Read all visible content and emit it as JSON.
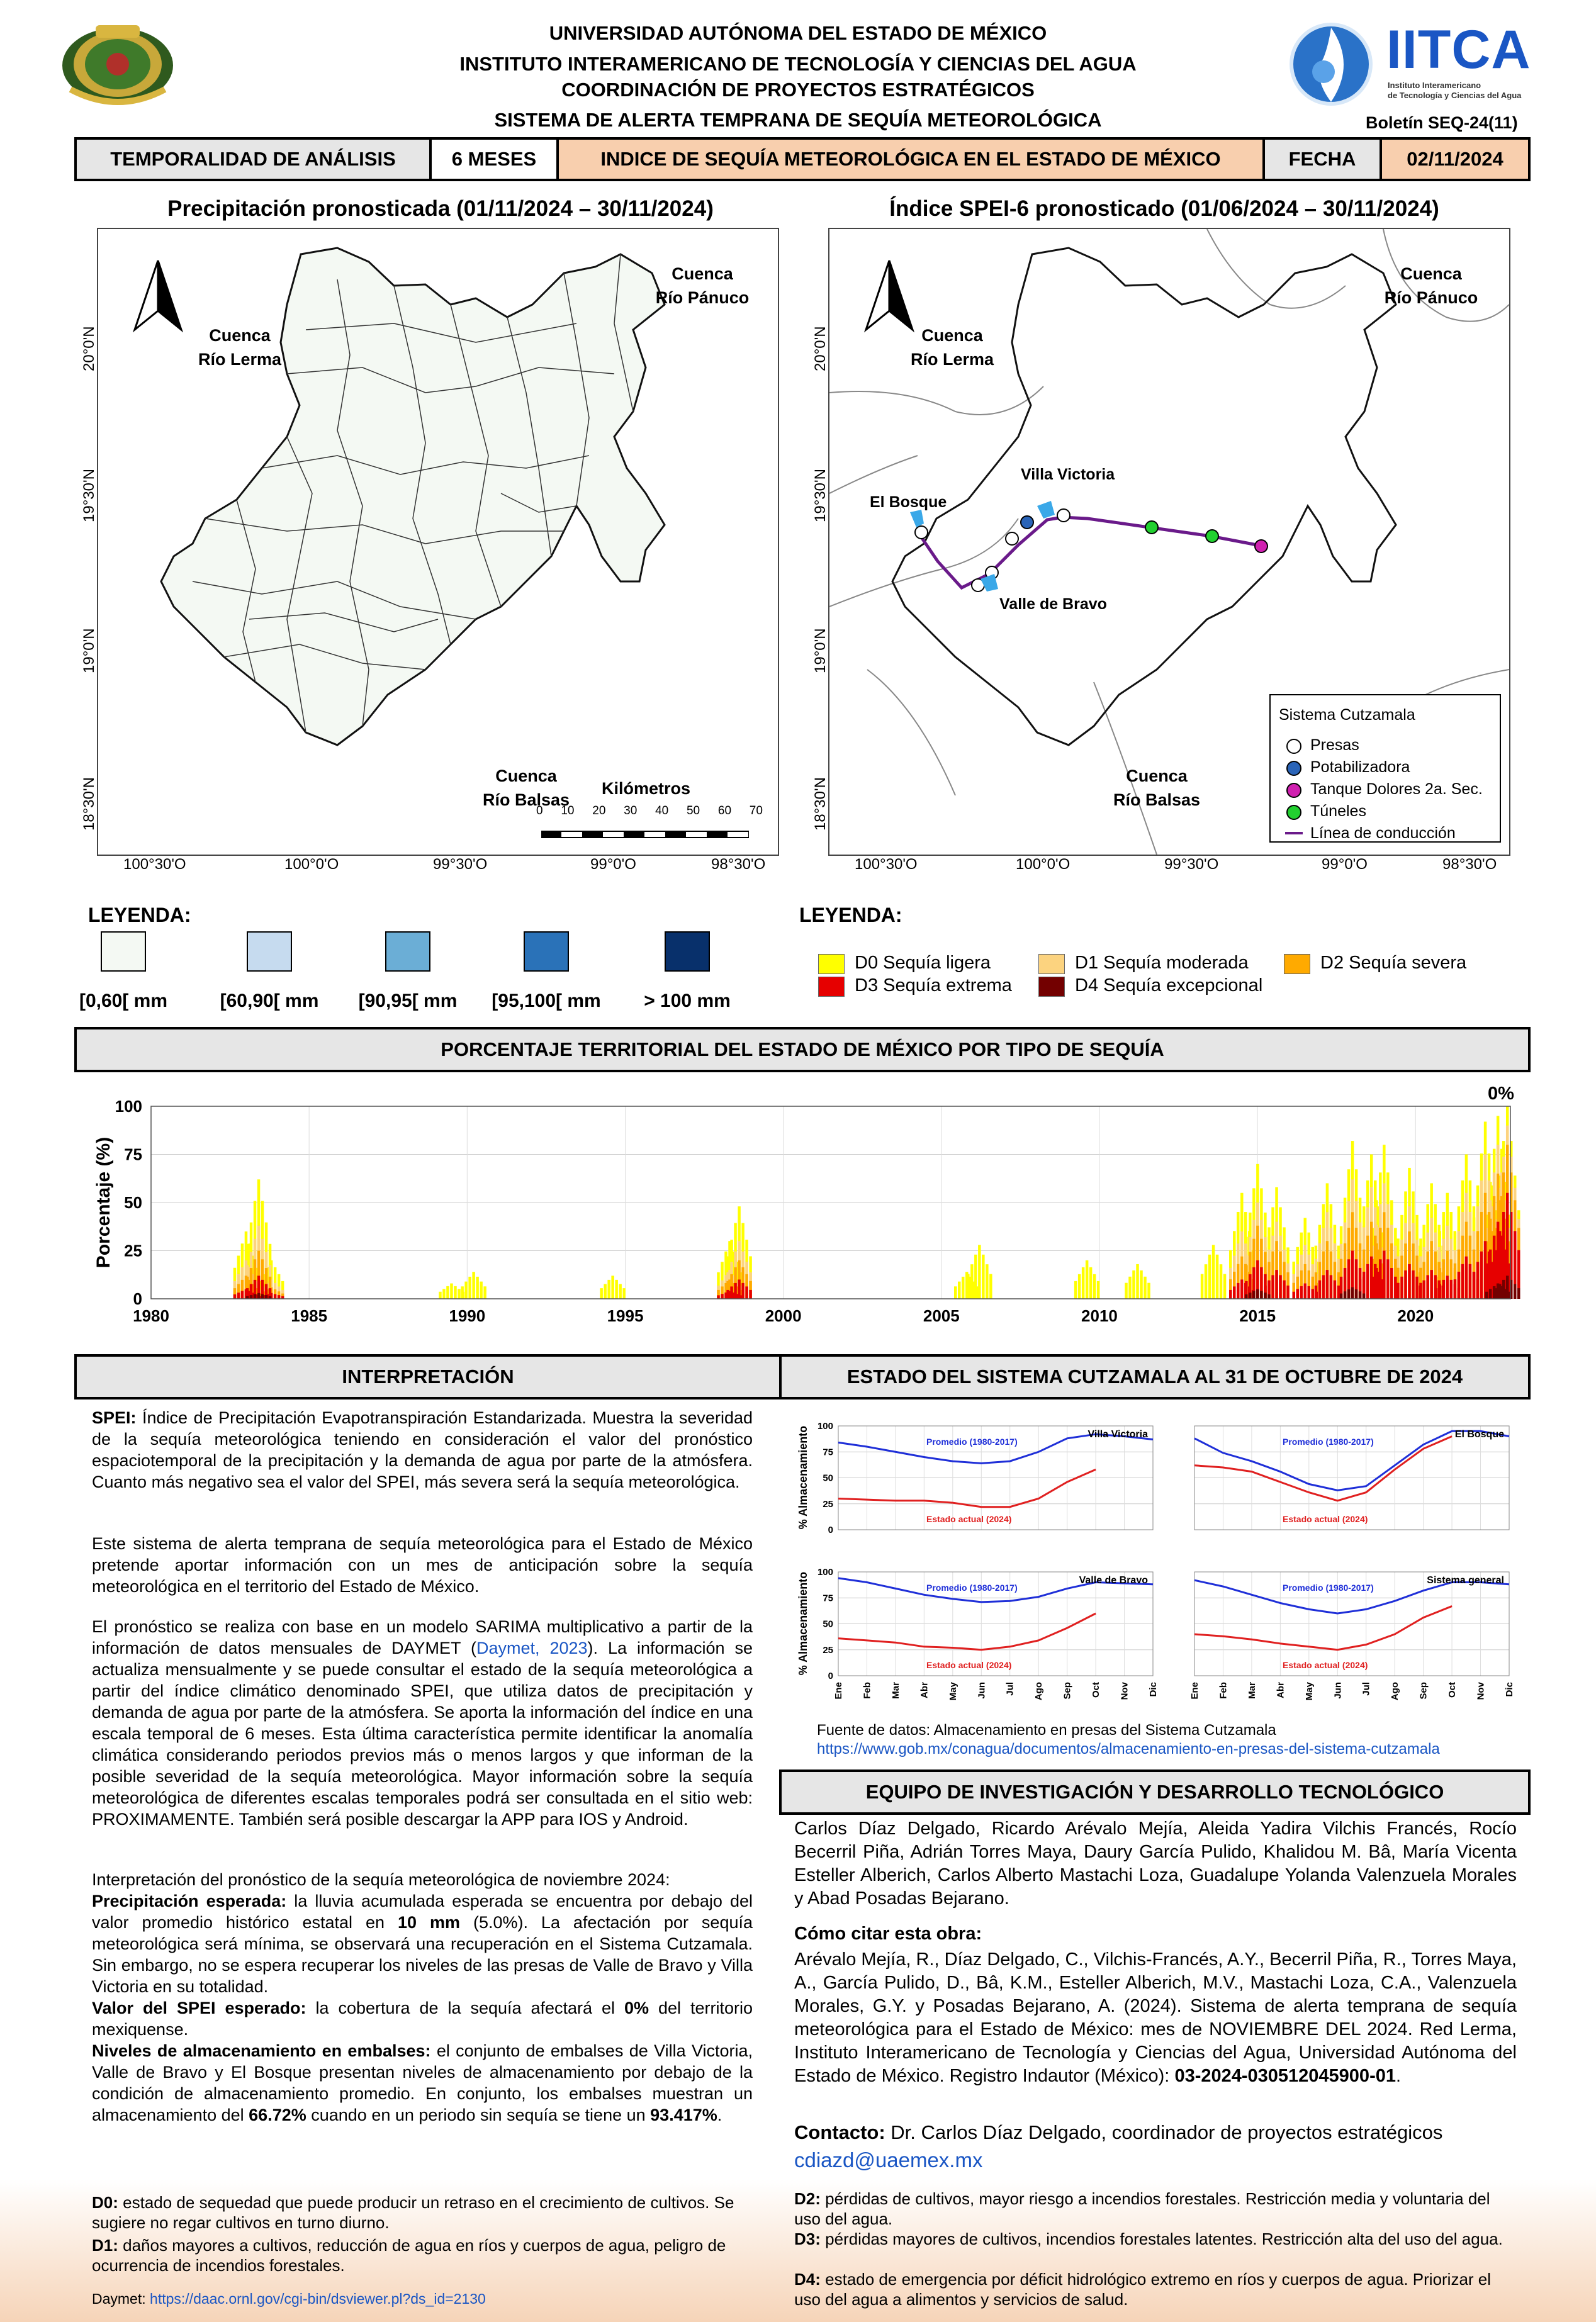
{
  "header": {
    "line1": "UNIVERSIDAD AUTÓNOMA DEL ESTADO DE MÉXICO",
    "line2": "INSTITUTO INTERAMERICANO DE TECNOLOGÍA Y CIENCIAS DEL AGUA",
    "line3": "COORDINACIÓN DE PROYECTOS ESTRATÉGICOS",
    "line4": "SISTEMA DE ALERTA TEMPRANA DE SEQUÍA METEOROLÓGICA",
    "bulletin": "Boletín SEQ-24(11)",
    "logo_text": "IITCA",
    "logo_sub1": "Instituto Interamericano",
    "logo_sub2": "de Tecnología y Ciencias del Agua"
  },
  "info_bar": {
    "temporalidad_label": "TEMPORALIDAD DE ANÁLISIS",
    "temporalidad_value": "6 MESES",
    "indice_label": "INDICE DE SEQUÍA METEOROLÓGICA EN EL ESTADO DE MÉXICO",
    "fecha_label": "FECHA",
    "fecha_value": "02/11/2024"
  },
  "map_left": {
    "title": "Precipitación pronosticada (01/11/2024 – 30/11/2024)",
    "basin_lerma": [
      "Cuenca",
      "Río Lerma"
    ],
    "basin_panuco": [
      "Cuenca",
      "Río Pánuco"
    ],
    "basin_balsas": [
      "Cuenca",
      "Río Balsas"
    ],
    "scale_title": "Kilómetros",
    "scale_ticks": [
      "0",
      "10",
      "20",
      "30",
      "40",
      "50",
      "60",
      "70"
    ],
    "lat_labels": [
      "20°0'N",
      "19°30'N",
      "19°0'N",
      "18°30'N"
    ],
    "lon_labels": [
      "100°30'O",
      "100°0'O",
      "99°30'O",
      "99°0'O",
      "98°30'O"
    ]
  },
  "map_right": {
    "title": "Índice SPEI-6 pronosticado (01/06/2024 – 30/11/2024)",
    "basin_lerma": [
      "Cuenca",
      "Río Lerma"
    ],
    "basin_panuco": [
      "Cuenca",
      "Río Pánuco"
    ],
    "basin_balsas": [
      "Cuenca",
      "Río Balsas"
    ],
    "places": [
      "El Bosque",
      "Villa Victoria",
      "Valle de Bravo"
    ],
    "legend_title": "Sistema Cutzamala",
    "legend_items": [
      {
        "label": "Presas",
        "color": "#ffffff"
      },
      {
        "label": "Potabilizadora",
        "color": "#2a64b8"
      },
      {
        "label": "Tanque Dolores 2a. Sec.",
        "color": "#d020b0"
      },
      {
        "label": "Túneles",
        "color": "#22d030"
      },
      {
        "label": "Línea de conducción",
        "color": "#6a1a8a"
      }
    ],
    "lat_labels": [
      "20°0'N",
      "19°30'N",
      "19°0'N",
      "18°30'N"
    ],
    "lon_labels": [
      "100°30'O",
      "100°0'O",
      "99°30'O",
      "99°0'O",
      "98°30'O"
    ]
  },
  "legend_precip": {
    "title": "LEYENDA:",
    "items": [
      {
        "label": "[0,60[ mm",
        "color": "#f4f9f3"
      },
      {
        "label": "[60,90[ mm",
        "color": "#c6dbef"
      },
      {
        "label": "[90,95[ mm",
        "color": "#6baed6"
      },
      {
        "label": "[95,100[ mm",
        "color": "#2a72b8"
      },
      {
        "label": "> 100 mm",
        "color": "#08306b"
      }
    ]
  },
  "legend_drought": {
    "title": "LEYENDA:",
    "items": [
      {
        "label": "D0 Sequía ligera",
        "color": "#ffff00"
      },
      {
        "label": "D1 Sequía moderada",
        "color": "#fcd37f"
      },
      {
        "label": "D2 Sequía severa",
        "color": "#ffaa00"
      },
      {
        "label": "D3 Sequía extrema",
        "color": "#e60000"
      },
      {
        "label": "D4 Sequía excepcional",
        "color": "#730000"
      }
    ]
  },
  "territorial": {
    "title": "PORCENTAJE TERRITORIAL DEL ESTADO DE MÉXICO POR TIPO DE SEQUÍA",
    "current_pct": "0%",
    "ylabel": "Porcentaje (%)"
  },
  "chart_data": [
    {
      "type": "area",
      "title": "",
      "ylabel": "Porcentaje (%)",
      "xlabel": "",
      "xlim": [
        1980,
        2023
      ],
      "ylim": [
        0,
        100
      ],
      "xticks": [
        "1980",
        "1985",
        "1990",
        "1995",
        "2000",
        "2005",
        "2010",
        "2015",
        "2020"
      ],
      "yticks": [
        "0",
        "25",
        "50",
        "75",
        "100"
      ],
      "series": [
        {
          "name": "D0 Sequía ligera",
          "color": "#ffff00",
          "x": [
            1983.0,
            1983.4,
            1983.8,
            1989.5,
            1990.2,
            1994.6,
            1998.3,
            1998.6,
            2005.8,
            2006.2,
            2009.6,
            2011.2,
            2013.6,
            2014.5,
            2015.0,
            2015.6,
            2016.5,
            2017.2,
            2018.0,
            2018.6,
            2019.0,
            2019.8,
            2020.5,
            2021.0,
            2021.6,
            2022.2,
            2022.6,
            2022.9
          ],
          "y": [
            35,
            62,
            20,
            8,
            14,
            12,
            30,
            48,
            14,
            28,
            20,
            18,
            28,
            55,
            70,
            58,
            42,
            60,
            82,
            75,
            80,
            68,
            60,
            55,
            75,
            92,
            95,
            100
          ]
        },
        {
          "name": "D1 Sequía moderada",
          "color": "#fcd37f",
          "x": [
            1983.0,
            1983.4,
            1983.8,
            1998.3,
            1998.6,
            2014.5,
            2015.0,
            2015.6,
            2016.5,
            2017.2,
            2018.0,
            2018.6,
            2019.0,
            2019.8,
            2020.5,
            2021.0,
            2021.6,
            2022.2,
            2022.6,
            2022.9
          ],
          "y": [
            20,
            38,
            10,
            15,
            30,
            35,
            50,
            40,
            28,
            45,
            62,
            58,
            60,
            48,
            42,
            38,
            55,
            75,
            80,
            90
          ]
        },
        {
          "name": "D2 Sequía severa",
          "color": "#ffaa00",
          "x": [
            1983.0,
            1983.4,
            1983.8,
            1998.3,
            1998.6,
            2014.5,
            2015.0,
            2015.6,
            2016.5,
            2017.2,
            2018.0,
            2018.6,
            2019.0,
            2019.8,
            2020.5,
            2021.0,
            2021.6,
            2022.2,
            2022.6,
            2022.9
          ],
          "y": [
            12,
            25,
            6,
            10,
            20,
            22,
            38,
            30,
            18,
            30,
            45,
            40,
            45,
            35,
            30,
            25,
            40,
            55,
            65,
            80
          ]
        },
        {
          "name": "D3 Sequía extrema",
          "color": "#e60000",
          "x": [
            1983.0,
            1983.4,
            1983.8,
            1998.3,
            1998.6,
            2014.5,
            2015.0,
            2015.6,
            2016.5,
            2017.2,
            2018.0,
            2018.6,
            2019.0,
            2019.8,
            2020.5,
            2021.0,
            2021.6,
            2022.2,
            2022.6,
            2022.9
          ],
          "y": [
            5,
            12,
            3,
            4,
            10,
            10,
            20,
            15,
            8,
            15,
            25,
            22,
            25,
            18,
            15,
            12,
            22,
            30,
            40,
            55
          ]
        },
        {
          "name": "D4 Sequía excepcional",
          "color": "#730000",
          "x": [
            1983.4,
            2015.0,
            2018.0,
            2022.6,
            2022.9
          ],
          "y": [
            3,
            5,
            6,
            8,
            12
          ]
        }
      ]
    },
    {
      "type": "line",
      "title": "Villa Victoria",
      "ylabel": "% Almacenamiento",
      "ylim": [
        0,
        100
      ],
      "categories": [
        "Ene",
        "Feb",
        "Mar",
        "Abr",
        "May",
        "Jun",
        "Jul",
        "Ago",
        "Sep",
        "Oct",
        "Nov",
        "Dic"
      ],
      "series": [
        {
          "name": "Promedio (1980-2017)",
          "color": "#1f2fd8",
          "values": [
            84,
            80,
            75,
            70,
            66,
            64,
            66,
            75,
            88,
            92,
            90,
            87
          ]
        },
        {
          "name": "Estado actual (2024)",
          "color": "#e02020",
          "values": [
            30,
            29,
            28,
            28,
            26,
            22,
            22,
            30,
            46,
            58,
            null,
            null
          ]
        }
      ]
    },
    {
      "type": "line",
      "title": "El Bosque",
      "ylabel": "% Almacenamiento",
      "ylim": [
        0,
        100
      ],
      "categories": [
        "Ene",
        "Feb",
        "Mar",
        "Abr",
        "May",
        "Jun",
        "Jul",
        "Ago",
        "Sep",
        "Oct",
        "Nov",
        "Dic"
      ],
      "series": [
        {
          "name": "Promedio (1980-2017)",
          "color": "#1f2fd8",
          "values": [
            88,
            74,
            66,
            56,
            44,
            38,
            42,
            62,
            82,
            95,
            95,
            90
          ]
        },
        {
          "name": "Estado actual (2024)",
          "color": "#e02020",
          "values": [
            62,
            60,
            56,
            46,
            36,
            28,
            36,
            58,
            78,
            90,
            null,
            null
          ]
        }
      ]
    },
    {
      "type": "line",
      "title": "Valle de Bravo",
      "ylabel": "% Almacenamiento",
      "ylim": [
        0,
        100
      ],
      "categories": [
        "Ene",
        "Feb",
        "Mar",
        "Abr",
        "May",
        "Jun",
        "Jul",
        "Ago",
        "Sep",
        "Oct",
        "Nov",
        "Dic"
      ],
      "series": [
        {
          "name": "Promedio (1980-2017)",
          "color": "#1f2fd8",
          "values": [
            94,
            90,
            84,
            78,
            74,
            71,
            72,
            76,
            84,
            90,
            89,
            88
          ]
        },
        {
          "name": "Estado actual (2024)",
          "color": "#e02020",
          "values": [
            36,
            34,
            32,
            28,
            27,
            25,
            28,
            34,
            46,
            60,
            null,
            null
          ]
        }
      ]
    },
    {
      "type": "line",
      "title": "Sistema general",
      "ylabel": "% Almacenamiento",
      "ylim": [
        0,
        100
      ],
      "categories": [
        "Ene",
        "Feb",
        "Mar",
        "Abr",
        "May",
        "Jun",
        "Jul",
        "Ago",
        "Sep",
        "Oct",
        "Nov",
        "Dic"
      ],
      "series": [
        {
          "name": "Promedio (1980-2017)",
          "color": "#1f2fd8",
          "values": [
            92,
            86,
            78,
            70,
            64,
            60,
            64,
            72,
            82,
            90,
            90,
            88
          ]
        },
        {
          "name": "Estado actual (2024)",
          "color": "#e02020",
          "values": [
            40,
            38,
            35,
            31,
            28,
            25,
            30,
            40,
            56,
            67,
            null,
            null
          ]
        }
      ]
    }
  ],
  "interpretation": {
    "title": "INTERPRETACIÓN",
    "p1_bold": "SPEI:",
    "p1": " Índice de Precipitación Evapotranspiración Estandarizada. Muestra la severidad de la sequía meteorológica teniendo en consideración el valor del pronóstico espaciotemporal de la precipitación y la demanda de agua por parte de la atmósfera. Cuanto más negativo sea el valor del SPEI, más severa será la sequía meteorológica.",
    "p2": "Este sistema de alerta temprana de sequía meteorológica para el Estado de México pretende aportar información con un mes de anticipación sobre la sequía meteorológica en el territorio del Estado de México.",
    "p3a": "El pronóstico se realiza con base en un modelo SARIMA multiplicativo a partir de la información de datos mensuales de DAYMET (",
    "p3_link": "Daymet, 2023",
    "p3b": "). La información se actualiza mensualmente y se puede consultar el estado de la sequía meteorológica a partir del índice climático denominado SPEI, que utiliza datos de precipitación y demanda de agua por parte de la atmósfera. Se aporta la información del índice en una escala temporal de 6 meses. Esta última característica permite identificar la anomalía climática considerando periodos previos más o menos largos y que informan de la posible severidad de la sequía meteorológica. Mayor información sobre la sequía meteorológica de diferentes escalas temporales podrá ser consultada en el sitio web: PROXIMAMENTE. También será posible descargar la APP para IOS y Android.",
    "p4": "Interpretación del pronóstico de la sequía meteorológica de noviembre 2024:",
    "p5_bold": "Precipitación esperada:",
    "p5a": " la lluvia acumulada esperada se encuentra por debajo del valor promedio histórico estatal en ",
    "p5_val": "10 mm",
    "p5b": " (5.0%). La afectación por sequía meteorológica será mínima, se observará una recuperación en el Sistema Cutzamala. Sin embargo, no se espera recuperar los niveles de las presas de Valle de Bravo y Villa Victoria en su totalidad.",
    "p6_bold": "Valor del SPEI esperado:",
    "p6a": " la cobertura de la sequía afectará el ",
    "p6_val": "0%",
    "p6b": " del territorio mexiquense.",
    "p7_bold": "Niveles de almacenamiento en embalses:",
    "p7a": " el conjunto de embalses de Villa Victoria, Valle de Bravo y El Bosque presentan niveles de almacenamiento por debajo de la condición de almacenamiento promedio. En conjunto, los embalses muestran un almacenamiento del ",
    "p7_val1": "66.72%",
    "p7b": " cuando en un periodo sin sequía se tiene un ",
    "p7_val2": "93.417%",
    "p7c": "."
  },
  "cutzamala": {
    "title": "ESTADO DEL SISTEMA CUTZAMALA AL 31 DE OCTUBRE DE 2024",
    "ylabel": "% Almacenamiento",
    "avg_label": "Promedio (1980-2017)",
    "cur_label": "Estado actual (2024)",
    "source": "Fuente de datos: Almacenamiento en presas del Sistema Cutzamala",
    "source_url": "https://www.gob.mx/conagua/documentos/almacenamiento-en-presas-del-sistema-cutzamala"
  },
  "team": {
    "title": "EQUIPO DE INVESTIGACIÓN Y DESARROLLO TECNOLÓGICO",
    "members": "Carlos Díaz Delgado, Ricardo Arévalo Mejía, Aleida Yadira Vilchis Francés, Rocío Becerril Piña, Adrián Torres Maya, Daury García Pulido, Khalidou M. Bâ, María Vicenta Esteller Alberich, Carlos Alberto Mastachi Loza, Guadalupe Yolanda Valenzuela Morales y Abad Posadas Bejarano.",
    "cite_title": "Cómo citar esta obra:",
    "cite_a": "Arévalo Mejía, R., Díaz Delgado, C., Vilchis-Francés, A.Y., Becerril Piña, R., Torres Maya, A., García Pulido, D., Bâ, K.M., Esteller Alberich, M.V., Mastachi Loza, C.A., Valenzuela Morales, G.Y. y Posadas Bejarano, A. (2024). Sistema de alerta temprana de sequía meteorológica para el Estado de México: mes de NOVIEMBRE DEL 2024. Red Lerma, Instituto Interamericano de Tecnología y Ciencias del Agua, Universidad Autónoma del Estado de México. Registro Indautor (México): ",
    "cite_reg": "03-2024-030512045900-01",
    "cite_b": ".",
    "contact_bold": "Contacto:",
    "contact": " Dr. Carlos Díaz Delgado, coordinador de proyectos estratégicos",
    "email": "cdiazd@uaemex.mx"
  },
  "footer": {
    "d0_code": "D0:",
    "d0": "estado de sequedad que puede producir un retraso en el crecimiento de cultivos. Se sugiere no regar cultivos en turno diurno.",
    "d1_code": "D1:",
    "d1": "daños mayores a cultivos, reducción de agua en ríos y cuerpos de agua, peligro de ocurrencia de incendios forestales.",
    "d2_code": "D2:",
    "d2": "pérdidas de cultivos, mayor riesgo a incendios forestales. Restricción media y voluntaria del uso del agua.",
    "d3_code": "D3:",
    "d3": "pérdidas mayores de cultivos, incendios forestales latentes. Restricción alta del uso del agua.",
    "d4_code": "D4:",
    "d4": "estado de emergencia por déficit hidrológico extremo en ríos y cuerpos de agua. Priorizar el uso del agua a alimentos y servicios de salud.",
    "daymet_label": "Daymet:",
    "daymet_url": "https://daac.ornl.gov/cgi-bin/dsviewer.pl?ds_id=2130"
  }
}
